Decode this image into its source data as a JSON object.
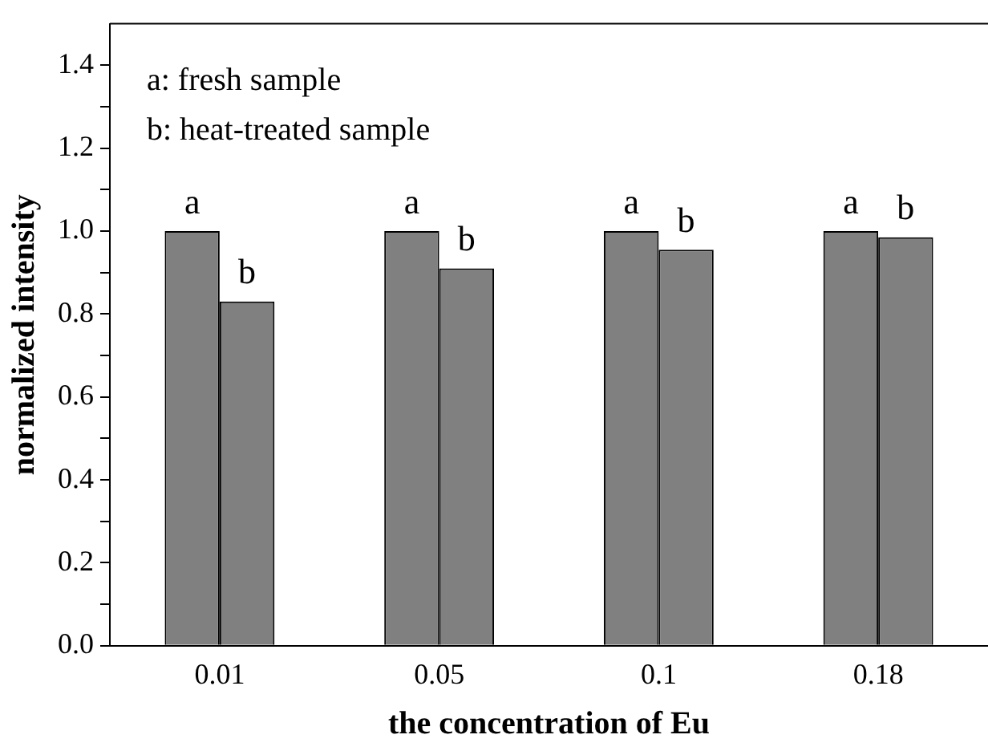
{
  "chart_data": {
    "type": "bar",
    "xlabel": "the concentration of Eu",
    "ylabel": "normalized intensity",
    "categories": [
      "0.01",
      "0.05",
      "0.1",
      "0.18"
    ],
    "series": [
      {
        "color": "#808080",
        "values": [
          1.0,
          1.0,
          1.0,
          1.0
        ],
        "value_labels": [
          "a",
          "a",
          "a",
          "a"
        ]
      },
      {
        "color": "#808080",
        "values": [
          0.83,
          0.91,
          0.955,
          0.985
        ],
        "value_labels": [
          "b",
          "b",
          "b",
          "b"
        ]
      }
    ],
    "ylim": [
      0,
      1.5
    ],
    "yticks": [
      {
        "value": 0,
        "label": "0.0"
      },
      {
        "value": 0.1,
        "label": null
      },
      0.2,
      {
        "value": 0.3,
        "label": null
      },
      0.4,
      {
        "value": 0.5,
        "label": null
      },
      0.6,
      {
        "value": 0.7,
        "label": null
      },
      0.8,
      {
        "value": 0.9,
        "label": null
      },
      {
        "value": 1,
        "label": "1.0"
      },
      {
        "value": 1.1,
        "label": null
      },
      1.2,
      {
        "value": 1.3,
        "label": null
      },
      1.4
    ],
    "grid": false,
    "legend": false,
    "annotations": [
      "a: fresh sample",
      "b: heat-treated sample"
    ]
  }
}
